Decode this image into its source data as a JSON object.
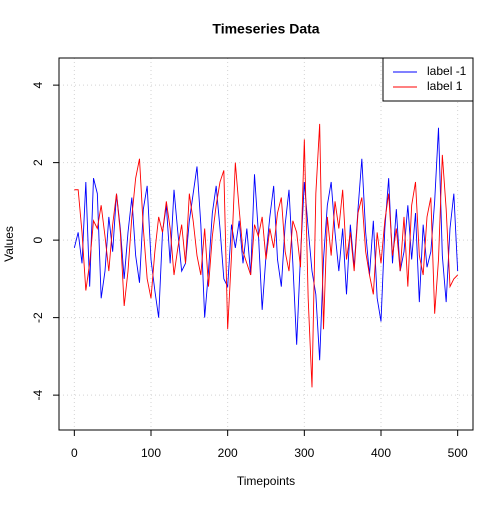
{
  "chart_data": {
    "type": "line",
    "title": "Timeseries Data",
    "x_label": "Timepoints",
    "y_label": "Values",
    "x": [
      0,
      5,
      10,
      15,
      20,
      25,
      30,
      35,
      40,
      45,
      50,
      55,
      60,
      65,
      70,
      75,
      80,
      85,
      90,
      95,
      100,
      105,
      110,
      115,
      120,
      125,
      130,
      135,
      140,
      145,
      150,
      155,
      160,
      165,
      170,
      175,
      180,
      185,
      190,
      195,
      200,
      205,
      210,
      215,
      220,
      225,
      230,
      235,
      240,
      245,
      250,
      255,
      260,
      265,
      270,
      275,
      280,
      285,
      290,
      295,
      300,
      305,
      310,
      315,
      320,
      325,
      330,
      335,
      340,
      345,
      350,
      355,
      360,
      365,
      370,
      375,
      380,
      385,
      390,
      395,
      400,
      405,
      410,
      415,
      420,
      425,
      430,
      435,
      440,
      445,
      450,
      455,
      460,
      465,
      470,
      475,
      480,
      485,
      490,
      495,
      500
    ],
    "series": [
      {
        "name": "label -1",
        "color": "#0000ff",
        "values": [
          -0.2,
          0.2,
          -0.6,
          1.5,
          -1.2,
          1.6,
          1.2,
          -1.5,
          -0.8,
          0.6,
          -0.3,
          1.2,
          0.3,
          -1.0,
          0.2,
          1.1,
          -0.4,
          -1.1,
          0.8,
          1.4,
          -0.5,
          -1.3,
          -2.0,
          0.2,
          0.9,
          -0.6,
          1.3,
          0.2,
          -0.8,
          -0.6,
          0.5,
          1.2,
          1.9,
          0.4,
          -2.0,
          -0.8,
          0.7,
          1.4,
          0.3,
          -1.0,
          -1.2,
          0.4,
          -0.2,
          0.5,
          -0.6,
          0.3,
          -0.9,
          1.7,
          0.2,
          -1.8,
          -0.4,
          0.6,
          1.4,
          -0.5,
          -1.2,
          0.4,
          1.3,
          -0.6,
          -2.7,
          -0.4,
          1.5,
          0.3,
          -0.8,
          -1.4,
          -3.1,
          -0.5,
          0.9,
          1.5,
          0.2,
          -0.8,
          0.3,
          -1.4,
          0.4,
          -0.7,
          0.8,
          2.1,
          0.2,
          -0.9,
          0.5,
          -1.5,
          -2.1,
          0.3,
          1.6,
          -0.6,
          0.8,
          -0.8,
          -0.3,
          0.9,
          -0.5,
          0.7,
          -1.6,
          0.4,
          -0.7,
          -0.3,
          1.0,
          2.9,
          -0.4,
          -1.6,
          0.3,
          1.2,
          -0.8
        ]
      },
      {
        "name": "label 1",
        "color": "#ff0000",
        "values": [
          1.3,
          1.3,
          0.2,
          -1.3,
          -0.6,
          0.5,
          0.3,
          0.9,
          0.1,
          -0.8,
          0.4,
          1.2,
          0.2,
          -1.7,
          -0.8,
          0.6,
          1.6,
          2.1,
          0.3,
          -1.0,
          -1.5,
          -0.3,
          0.6,
          0.2,
          1.0,
          0.3,
          -0.9,
          -0.2,
          0.4,
          -0.6,
          1.2,
          0.5,
          -0.4,
          -0.9,
          0.3,
          -1.2,
          0.1,
          0.9,
          1.5,
          1.8,
          -2.3,
          -0.4,
          2.0,
          0.8,
          -0.3,
          -0.6,
          -0.9,
          0.4,
          0.1,
          0.6,
          -0.5,
          0.3,
          -0.2,
          0.7,
          1.1,
          -0.3,
          -0.8,
          0.5,
          0.2,
          -0.7,
          2.6,
          -1.5,
          -3.8,
          1.2,
          3.0,
          -2.3,
          0.6,
          -0.4,
          1.0,
          0.3,
          1.3,
          -0.5,
          0.2,
          -0.8,
          0.7,
          1.1,
          -0.3,
          -0.9,
          -1.4,
          0.2,
          -0.6,
          0.5,
          1.2,
          -0.4,
          0.3,
          -0.8,
          0.6,
          -1.2,
          0.9,
          1.5,
          -0.4,
          -0.9,
          0.6,
          1.1,
          -1.9,
          -0.5,
          2.2,
          0.8,
          -1.2,
          -1.0,
          -0.9
        ]
      }
    ],
    "xlim": [
      -20,
      520
    ],
    "ylim": [
      -4.9,
      4.7
    ],
    "xticks": [
      0,
      100,
      200,
      300,
      400,
      500
    ],
    "yticks": [
      -4,
      -2,
      0,
      2,
      4
    ],
    "grid": true,
    "legend": "topright"
  }
}
